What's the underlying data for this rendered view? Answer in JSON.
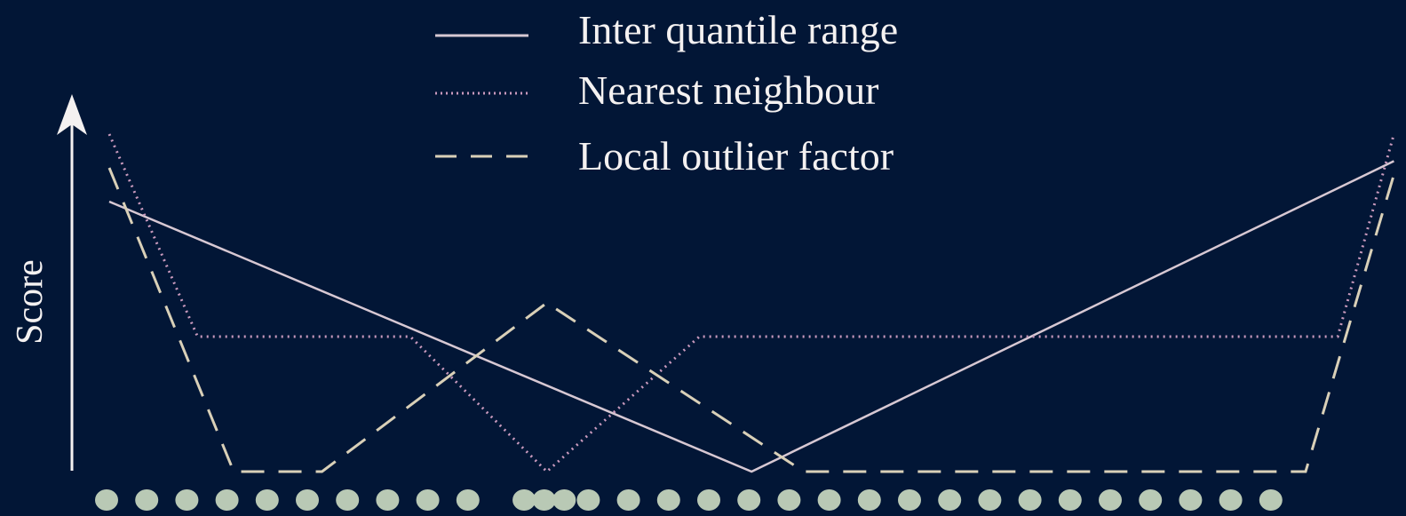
{
  "chart_data": {
    "type": "line",
    "title": "",
    "xlabel": "",
    "ylabel": "Score",
    "legend": [
      "Inter quantile range",
      "Nearest neighbour",
      "Local outlier factor"
    ],
    "series": [
      {
        "name": "Inter quantile range",
        "style": "solid",
        "color": "#d7c8d3",
        "points": [
          [
            0.0,
            0.8
          ],
          [
            16.0,
            0.0
          ],
          [
            32.0,
            0.92
          ]
        ]
      },
      {
        "name": "Nearest neighbour",
        "style": "dotted",
        "color": "#c99abd",
        "points": [
          [
            0.0,
            1.0
          ],
          [
            2.2,
            0.4
          ],
          [
            7.5,
            0.4
          ],
          [
            10.9,
            0.0
          ],
          [
            14.7,
            0.4
          ],
          [
            30.6,
            0.4
          ],
          [
            32.0,
            1.0
          ]
        ]
      },
      {
        "name": "Local outlier factor",
        "style": "dashed",
        "color": "#d9d0b8",
        "points": [
          [
            0.0,
            0.9
          ],
          [
            3.1,
            0.0
          ],
          [
            5.3,
            0.0
          ],
          [
            10.9,
            0.5
          ],
          [
            17.3,
            0.0
          ],
          [
            29.8,
            0.0
          ],
          [
            32.0,
            0.88
          ]
        ]
      }
    ],
    "dots": {
      "color": "#b9c9b5",
      "x": [
        0,
        1,
        2,
        3,
        4,
        5,
        6,
        7,
        8,
        9,
        10.4,
        10.9,
        11.4,
        12.0,
        13.0,
        14.0,
        15.0,
        16.0,
        17.0,
        18.0,
        19.0,
        20.0,
        21.0,
        22.0,
        23.0,
        24.0,
        25.0,
        26.0,
        27.0,
        28.0,
        29.0
      ]
    }
  }
}
